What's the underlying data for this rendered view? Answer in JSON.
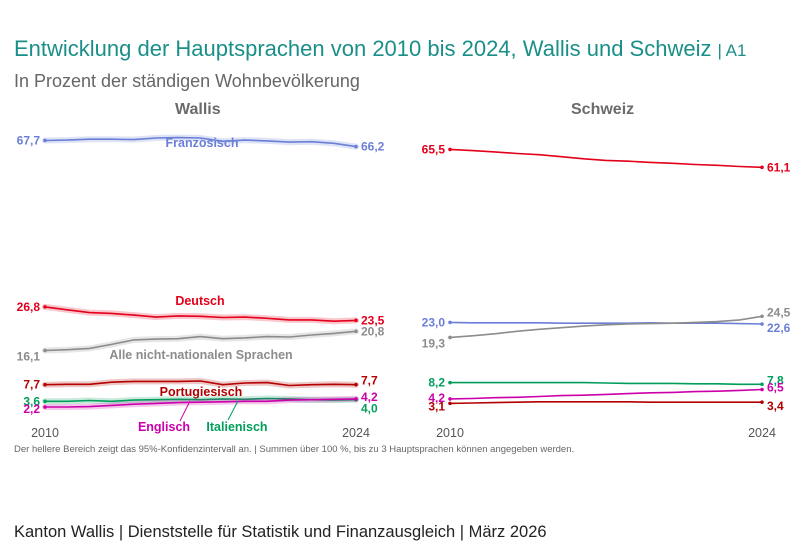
{
  "header": {
    "title": "Entwicklung der Hauptsprachen von 2010 bis 2024, Wallis und Schweiz",
    "code": "| A1",
    "subtitle": "In Prozent der ständigen Wohnbevölkerung"
  },
  "note": "Der hellere Bereich zeigt das 95%-Konfidenzintervall an. | Summen über 100 %, bis zu 3 Hauptsprachen können angegeben werden.",
  "footer": "Kanton Wallis | Dienststelle für Statistik und Finanzausgleich | März 2026",
  "colors": {
    "franzoesisch": "#6b7fd7",
    "deutsch": "#e3001b",
    "nichtnational": "#8c8c8c",
    "portugiesisch": "#b30000",
    "englisch": "#cc00aa",
    "italienisch": "#009e5a"
  },
  "chart_data": [
    {
      "type": "line",
      "title": "Wallis",
      "x": [
        2010,
        2011,
        2012,
        2013,
        2014,
        2015,
        2016,
        2017,
        2018,
        2019,
        2020,
        2021,
        2022,
        2023,
        2024
      ],
      "x_tick_labels": [
        "2010",
        "2024"
      ],
      "ylim": [
        0,
        72
      ],
      "series": [
        {
          "name": "Französisch",
          "key": "franzoesisch",
          "values": [
            67.7,
            67.8,
            68.0,
            68.0,
            67.9,
            68.3,
            68.4,
            68.3,
            67.5,
            67.8,
            67.6,
            67.3,
            67.4,
            67.0,
            66.2
          ],
          "start_label": "67,7",
          "end_label": "66,2"
        },
        {
          "name": "Deutsch",
          "key": "deutsch",
          "values": [
            26.8,
            26.1,
            25.4,
            25.2,
            24.8,
            24.3,
            24.6,
            24.5,
            24.2,
            24.3,
            24.0,
            23.6,
            23.6,
            23.3,
            23.5
          ],
          "start_label": "26,8",
          "end_label": "23,5"
        },
        {
          "name": "Alle nicht-nationalen Sprachen",
          "key": "nichtnational",
          "values": [
            16.1,
            16.3,
            16.6,
            17.6,
            18.7,
            18.9,
            19.0,
            19.5,
            19.0,
            19.2,
            19.5,
            19.4,
            19.9,
            20.3,
            20.8
          ],
          "start_label": "16,1",
          "end_label": "20,8"
        },
        {
          "name": "Portugiesisch",
          "key": "portugiesisch",
          "values": [
            7.7,
            7.8,
            7.8,
            8.3,
            8.5,
            8.5,
            8.5,
            8.6,
            7.7,
            8.1,
            8.2,
            7.5,
            7.7,
            7.8,
            7.7
          ],
          "start_label": "7,7",
          "end_label": "7,7"
        },
        {
          "name": "Italienisch",
          "key": "italienisch",
          "values": [
            3.6,
            3.6,
            3.8,
            3.6,
            3.9,
            4.0,
            4.1,
            4.0,
            4.2,
            4.1,
            4.3,
            4.2,
            4.0,
            3.9,
            4.0
          ],
          "start_label": "3,6",
          "end_label": "4,0"
        },
        {
          "name": "Englisch",
          "key": "englisch",
          "values": [
            2.2,
            2.2,
            2.3,
            2.6,
            2.9,
            3.1,
            3.3,
            3.4,
            3.5,
            3.6,
            3.6,
            3.9,
            4.0,
            4.1,
            4.2
          ],
          "start_label": "2,2",
          "end_label": "4,2"
        }
      ]
    },
    {
      "type": "line",
      "title": "Schweiz",
      "x": [
        2010,
        2011,
        2012,
        2013,
        2014,
        2015,
        2016,
        2017,
        2018,
        2019,
        2020,
        2021,
        2022,
        2023,
        2024
      ],
      "x_tick_labels": [
        "2010",
        "2024"
      ],
      "ylim": [
        0,
        72
      ],
      "series": [
        {
          "name": "Französisch",
          "key": "franzoesisch",
          "values": [
            23.0,
            22.9,
            22.9,
            22.9,
            22.9,
            22.8,
            22.8,
            22.8,
            22.8,
            22.9,
            22.8,
            22.8,
            22.8,
            22.7,
            22.6
          ],
          "start_label": "23,0",
          "end_label": "22,6"
        },
        {
          "name": "Deutsch",
          "key": "deutsch",
          "values": [
            65.5,
            65.2,
            64.9,
            64.5,
            64.2,
            63.7,
            63.2,
            62.8,
            62.6,
            62.3,
            62.1,
            61.8,
            61.6,
            61.3,
            61.1
          ],
          "start_label": "65,5",
          "end_label": "61,1"
        },
        {
          "name": "Alle nicht-nationalen Sprachen",
          "key": "nichtnational",
          "values": [
            19.3,
            19.7,
            20.2,
            20.8,
            21.3,
            21.7,
            22.1,
            22.4,
            22.6,
            22.7,
            22.8,
            23.0,
            23.2,
            23.6,
            24.5
          ],
          "start_label": "19,3",
          "end_label": "24,5"
        },
        {
          "name": "Portugiesisch",
          "key": "portugiesisch",
          "values": [
            3.1,
            3.2,
            3.3,
            3.4,
            3.5,
            3.5,
            3.5,
            3.5,
            3.5,
            3.4,
            3.4,
            3.4,
            3.4,
            3.4,
            3.4
          ],
          "start_label": "3,1",
          "end_label": "3,4"
        },
        {
          "name": "Italienisch",
          "key": "italienisch",
          "values": [
            8.2,
            8.2,
            8.2,
            8.2,
            8.2,
            8.2,
            8.2,
            8.1,
            8.0,
            8.0,
            8.0,
            7.9,
            7.9,
            7.8,
            7.8
          ],
          "start_label": "8,2",
          "end_label": "7,8"
        },
        {
          "name": "Englisch",
          "key": "englisch",
          "values": [
            4.2,
            4.3,
            4.5,
            4.6,
            4.8,
            5.0,
            5.1,
            5.3,
            5.5,
            5.7,
            5.8,
            6.0,
            6.1,
            6.3,
            6.5
          ],
          "start_label": "4,2",
          "end_label": "6,5"
        }
      ],
      "series_labels": []
    }
  ]
}
